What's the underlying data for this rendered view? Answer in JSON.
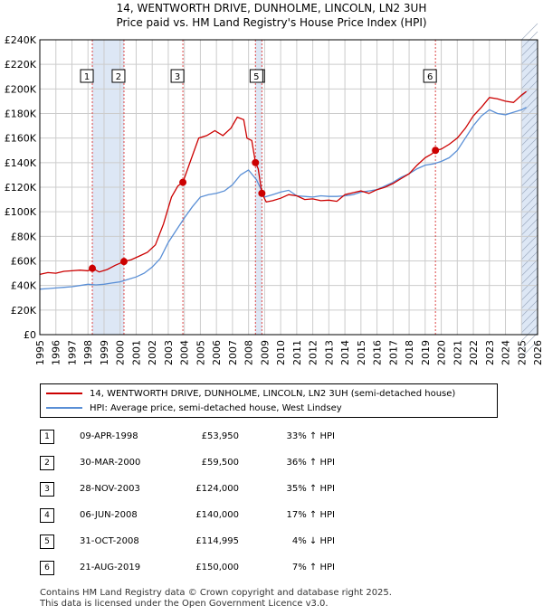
{
  "title": {
    "line1": "14, WENTWORTH DRIVE, DUNHOLME, LINCOLN, LN2 3UH",
    "line2": "Price paid vs. HM Land Registry's House Price Index (HPI)"
  },
  "legend": {
    "property": "14, WENTWORTH DRIVE, DUNHOLME, LINCOLN, LN2 3UH (semi-detached house)",
    "hpi": "HPI: Average price, semi-detached house, West Lindsey"
  },
  "colors": {
    "property": "#cc0000",
    "hpi": "#5a8fd6",
    "shade": "#dde7f5",
    "grid": "#cccccc"
  },
  "chart_data": {
    "type": "line",
    "ylim": [
      0,
      240000
    ],
    "xlim": [
      1995,
      2026
    ],
    "y_ticks": [
      "£0",
      "£20K",
      "£40K",
      "£60K",
      "£80K",
      "£100K",
      "£120K",
      "£140K",
      "£160K",
      "£180K",
      "£200K",
      "£220K",
      "£240K"
    ],
    "x_ticks": [
      "1995",
      "1996",
      "1997",
      "1998",
      "1999",
      "2000",
      "2001",
      "2002",
      "2003",
      "2004",
      "2005",
      "2006",
      "2007",
      "2008",
      "2009",
      "2010",
      "2011",
      "2012",
      "2013",
      "2014",
      "2015",
      "2016",
      "2017",
      "2018",
      "2019",
      "2020",
      "2021",
      "2022",
      "2023",
      "2024",
      "2025",
      "2026"
    ],
    "shaded_spans": [
      [
        1998.27,
        2000.24
      ],
      [
        2008.43,
        2008.83
      ],
      [
        2025.0,
        2026.0
      ]
    ],
    "series": [
      {
        "name": "14, WENTWORTH DRIVE, DUNHOLME, LINCOLN, LN2 3UH (semi-detached house)",
        "x": [
          1995.0,
          1995.5,
          1996.0,
          1996.5,
          1997.0,
          1997.5,
          1998.0,
          1998.27,
          1998.7,
          1999.2,
          1999.7,
          2000.24,
          2000.7,
          2001.2,
          2001.7,
          2002.2,
          2002.7,
          2003.2,
          2003.6,
          2003.91,
          2004.4,
          2004.9,
          2005.4,
          2005.9,
          2006.4,
          2006.9,
          2007.3,
          2007.7,
          2007.9,
          2008.2,
          2008.43,
          2008.6,
          2008.83,
          2009.1,
          2009.5,
          2010.0,
          2010.5,
          2011.0,
          2011.5,
          2012.0,
          2012.5,
          2013.0,
          2013.5,
          2014.0,
          2014.5,
          2015.0,
          2015.5,
          2016.0,
          2016.5,
          2017.0,
          2017.5,
          2018.0,
          2018.5,
          2019.0,
          2019.4,
          2019.64,
          2020.0,
          2020.5,
          2021.0,
          2021.5,
          2022.0,
          2022.5,
          2023.0,
          2023.5,
          2024.0,
          2024.5,
          2025.0,
          2025.3
        ],
        "values": [
          49000,
          50500,
          50000,
          51500,
          52000,
          52500,
          52000,
          53950,
          51000,
          53000,
          56500,
          59500,
          61000,
          64000,
          67000,
          73000,
          90000,
          112000,
          121000,
          124000,
          142000,
          160000,
          162000,
          166000,
          162000,
          168000,
          177000,
          175000,
          160000,
          158000,
          140000,
          135000,
          114995,
          108000,
          109000,
          111000,
          114000,
          113000,
          110000,
          110500,
          109000,
          109500,
          108500,
          114000,
          115500,
          117000,
          115000,
          118000,
          120000,
          123000,
          127000,
          131000,
          138000,
          144000,
          147000,
          150000,
          151000,
          155000,
          160000,
          168000,
          178000,
          185000,
          193000,
          192000,
          190000,
          189000,
          195000,
          198000
        ]
      },
      {
        "name": "HPI: Average price, semi-detached house, West Lindsey",
        "x": [
          1995.0,
          1995.5,
          1996.0,
          1996.5,
          1997.0,
          1997.5,
          1998.0,
          1998.5,
          1999.0,
          1999.5,
          2000.0,
          2000.5,
          2001.0,
          2001.5,
          2002.0,
          2002.5,
          2003.0,
          2003.5,
          2004.0,
          2004.5,
          2005.0,
          2005.5,
          2006.0,
          2006.5,
          2007.0,
          2007.5,
          2008.0,
          2008.5,
          2009.0,
          2009.5,
          2010.0,
          2010.5,
          2011.0,
          2011.5,
          2012.0,
          2012.5,
          2013.0,
          2013.5,
          2014.0,
          2014.5,
          2015.0,
          2015.5,
          2016.0,
          2016.5,
          2017.0,
          2017.5,
          2018.0,
          2018.5,
          2019.0,
          2019.5,
          2020.0,
          2020.5,
          2021.0,
          2021.5,
          2022.0,
          2022.5,
          2023.0,
          2023.5,
          2024.0,
          2024.5,
          2025.0,
          2025.3
        ],
        "values": [
          37000,
          37500,
          38000,
          38500,
          39000,
          40000,
          41000,
          40500,
          41000,
          42000,
          43000,
          45000,
          47000,
          50000,
          55000,
          62000,
          75000,
          85000,
          95000,
          104000,
          112000,
          114000,
          115000,
          117000,
          122000,
          130000,
          134000,
          126000,
          112000,
          114000,
          116000,
          117500,
          113000,
          112500,
          112000,
          113000,
          112500,
          112500,
          113000,
          114000,
          116000,
          117000,
          118000,
          121000,
          124000,
          128000,
          131000,
          135000,
          138000,
          139000,
          141000,
          144000,
          150000,
          160000,
          170000,
          178000,
          183000,
          180000,
          179000,
          181000,
          183000,
          185000
        ]
      }
    ],
    "sales": [
      {
        "label": "1",
        "x": 1998.27,
        "price": 53950
      },
      {
        "label": "2",
        "x": 2000.24,
        "price": 59500
      },
      {
        "label": "3",
        "x": 2003.91,
        "price": 124000
      },
      {
        "label": "4",
        "x": 2008.43,
        "price": 140000
      },
      {
        "label": "5",
        "x": 2008.83,
        "price": 114995
      },
      {
        "label": "6",
        "x": 2019.64,
        "price": 150000
      }
    ]
  },
  "sales_table": [
    {
      "num": "1",
      "date": "09-APR-1998",
      "price": "£53,950",
      "hpi": "33% ↑ HPI"
    },
    {
      "num": "2",
      "date": "30-MAR-2000",
      "price": "£59,500",
      "hpi": "36% ↑ HPI"
    },
    {
      "num": "3",
      "date": "28-NOV-2003",
      "price": "£124,000",
      "hpi": "35% ↑ HPI"
    },
    {
      "num": "4",
      "date": "06-JUN-2008",
      "price": "£140,000",
      "hpi": "17% ↑ HPI"
    },
    {
      "num": "5",
      "date": "31-OCT-2008",
      "price": "£114,995",
      "hpi": "4% ↓ HPI"
    },
    {
      "num": "6",
      "date": "21-AUG-2019",
      "price": "£150,000",
      "hpi": "7% ↑ HPI"
    }
  ],
  "footer": {
    "line1": "Contains HM Land Registry data © Crown copyright and database right 2025.",
    "line2": "This data is licensed under the Open Government Licence v3.0."
  }
}
